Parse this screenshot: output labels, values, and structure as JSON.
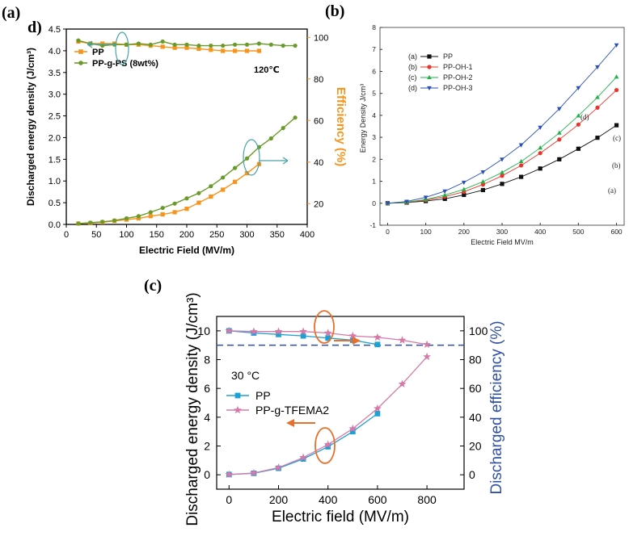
{
  "chart_data": [
    {
      "panel": "(a)",
      "type": "line",
      "corner_label": "d)",
      "annotation": "120℃",
      "xlabel": "Electric Field (MV/m)",
      "ylabel": "Discharged energy density (J/cm³)",
      "y2label": "Efficiency (%)",
      "xlim": [
        0,
        400
      ],
      "ylim": [
        0,
        4.5
      ],
      "y2lim": [
        10,
        104
      ],
      "x_ticks": [
        "0",
        "50",
        "100",
        "150",
        "200",
        "250",
        "300",
        "350",
        "400"
      ],
      "y_ticks": [
        "0.0",
        "0.5",
        "1.0",
        "1.5",
        "2.0",
        "2.5",
        "3.0",
        "3.5",
        "4.0",
        "4.5"
      ],
      "y2_ticks": [
        "20",
        "40",
        "60",
        "80",
        "100"
      ],
      "series": [
        {
          "name": "PP",
          "axis": "left",
          "color": "#f7941d",
          "x": [
            20,
            40,
            60,
            80,
            100,
            120,
            140,
            160,
            180,
            200,
            220,
            240,
            260,
            280,
            300,
            320
          ],
          "values": [
            0.02,
            0.03,
            0.05,
            0.08,
            0.11,
            0.14,
            0.19,
            0.23,
            0.28,
            0.36,
            0.5,
            0.64,
            0.8,
            0.98,
            1.18,
            1.39
          ]
        },
        {
          "name": "PP-g-PS (8wt%)",
          "axis": "left",
          "color": "#6a9a2a",
          "x": [
            20,
            40,
            60,
            80,
            100,
            120,
            140,
            160,
            180,
            200,
            220,
            240,
            260,
            280,
            300,
            320,
            340,
            360,
            380
          ],
          "values": [
            0.02,
            0.04,
            0.06,
            0.09,
            0.14,
            0.19,
            0.28,
            0.38,
            0.48,
            0.6,
            0.72,
            0.88,
            1.08,
            1.3,
            1.52,
            1.78,
            1.98,
            2.22,
            2.46
          ]
        },
        {
          "name": "PP efficiency",
          "axis": "right",
          "color": "#f7941d",
          "x": [
            20,
            40,
            60,
            80,
            100,
            120,
            140,
            160,
            180,
            200,
            220,
            240,
            260,
            280,
            300,
            320
          ],
          "values": [
            98,
            97,
            97,
            97,
            96.5,
            96.5,
            96,
            95.5,
            95,
            95,
            94.5,
            94,
            93.5,
            93.5,
            93.5,
            93.5
          ]
        },
        {
          "name": "PP-g-PS efficiency",
          "axis": "right",
          "color": "#6a9a2a",
          "x": [
            20,
            40,
            60,
            80,
            100,
            120,
            140,
            160,
            180,
            200,
            220,
            240,
            260,
            280,
            300,
            320,
            340,
            360,
            380
          ],
          "values": [
            98.5,
            97,
            96,
            96.5,
            96.5,
            97,
            96.5,
            98,
            96.5,
            96.5,
            96,
            96,
            96,
            96.5,
            96.5,
            97,
            96.5,
            96,
            96
          ]
        }
      ],
      "legend": [
        "PP",
        "PP-g-PS (8wt%)"
      ]
    },
    {
      "panel": "(b)",
      "type": "line",
      "xlabel": "Electric Field MV/m",
      "ylabel": "Energy Density J/cm³",
      "xlim": [
        -20,
        620
      ],
      "ylim": [
        -1,
        8
      ],
      "x_ticks": [
        "0",
        "100",
        "200",
        "300",
        "400",
        "500",
        "600"
      ],
      "y_ticks": [
        "-1",
        "0",
        "1",
        "2",
        "3",
        "4",
        "5",
        "6",
        "7",
        "8"
      ],
      "x": [
        0,
        50,
        100,
        150,
        200,
        250,
        300,
        350,
        400,
        450,
        500,
        550,
        600
      ],
      "series": [
        {
          "name": "PP",
          "tag": "(a)",
          "color": "#111111",
          "marker": "square",
          "values": [
            0,
            0.03,
            0.1,
            0.2,
            0.38,
            0.6,
            0.88,
            1.2,
            1.58,
            2.0,
            2.48,
            2.98,
            3.55
          ]
        },
        {
          "name": "PP-OH-1",
          "tag": "(b)",
          "color": "#e8352b",
          "marker": "circle",
          "values": [
            0,
            0.04,
            0.14,
            0.3,
            0.52,
            0.85,
            1.25,
            1.72,
            2.28,
            2.9,
            3.58,
            4.35,
            5.15
          ]
        },
        {
          "name": "PP-OH-2",
          "tag": "(c)",
          "color": "#22b24c",
          "marker": "triangle-up",
          "values": [
            0,
            0.05,
            0.17,
            0.37,
            0.63,
            0.98,
            1.4,
            1.9,
            2.52,
            3.2,
            3.98,
            4.82,
            5.75
          ]
        },
        {
          "name": "PP-OH-3",
          "tag": "(d)",
          "color": "#2a4fb8",
          "marker": "triangle-down",
          "values": [
            0,
            0.08,
            0.27,
            0.55,
            0.95,
            1.42,
            2.0,
            2.65,
            3.45,
            4.3,
            5.25,
            6.2,
            7.2
          ]
        }
      ],
      "curve_tags": [
        "(a)",
        "(b)",
        "(c)",
        "(d)"
      ]
    },
    {
      "panel": "(c)",
      "type": "line",
      "annotation": "30 °C",
      "xlabel": "Electric field (MV/m)",
      "ylabel": "Discharged energy density (J/cm³)",
      "y2label": "Discharged efficiency (%)",
      "xlim": [
        -50,
        950
      ],
      "ylim": [
        -1,
        11
      ],
      "y2lim": [
        -10,
        110
      ],
      "x_ticks": [
        "0",
        "200",
        "400",
        "600",
        "800"
      ],
      "y_ticks": [
        "0",
        "2",
        "4",
        "6",
        "8",
        "10"
      ],
      "y2_ticks": [
        "0",
        "20",
        "40",
        "60",
        "80",
        "100"
      ],
      "reference_line_y2": 90,
      "series": [
        {
          "name": "PP",
          "axis": "left",
          "color": "#1ea0d2",
          "marker": "square",
          "x": [
            0,
            100,
            200,
            300,
            400,
            500,
            600
          ],
          "values": [
            0.02,
            0.1,
            0.45,
            1.1,
            1.95,
            3.0,
            4.25
          ]
        },
        {
          "name": "PP-g-TFEMA2",
          "axis": "left",
          "color": "#d57aa8",
          "marker": "star",
          "x": [
            0,
            100,
            200,
            300,
            400,
            500,
            600,
            700,
            800
          ],
          "values": [
            0.02,
            0.12,
            0.5,
            1.2,
            2.1,
            3.2,
            4.6,
            6.3,
            8.2
          ]
        },
        {
          "name": "PP efficiency",
          "axis": "right",
          "color": "#1ea0d2",
          "marker": "square",
          "x": [
            0,
            100,
            200,
            300,
            400,
            500,
            600
          ],
          "values": [
            100,
            98.5,
            97.5,
            96.5,
            95,
            93.5,
            90.5
          ]
        },
        {
          "name": "PP-g-TFEMA2 efficiency",
          "axis": "right",
          "color": "#d57aa8",
          "marker": "star",
          "x": [
            0,
            100,
            200,
            300,
            400,
            500,
            600,
            700,
            800
          ],
          "values": [
            100,
            99.5,
            99.5,
            99.5,
            98.5,
            96.5,
            95.5,
            93.5,
            90.5
          ]
        }
      ],
      "legend": [
        "PP",
        "PP-g-TFEMA2"
      ]
    }
  ],
  "colors": {
    "orange": "#f7941d",
    "green": "#6a9a2a",
    "teal": "#4aa3a8",
    "dark_blue": "#3050a0",
    "arrow_orange": "#e8702a"
  }
}
